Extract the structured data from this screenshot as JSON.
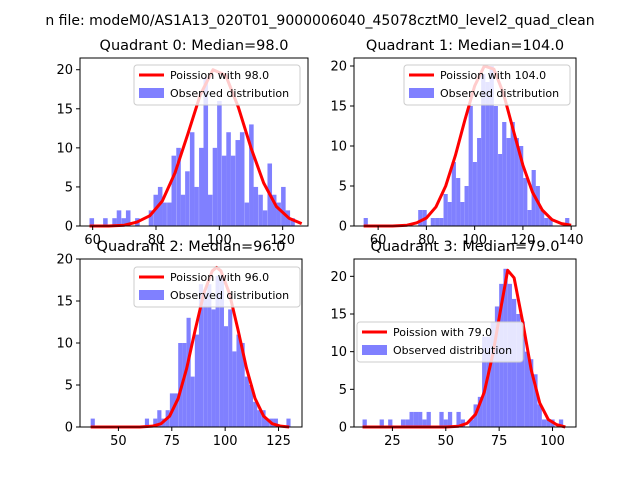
{
  "suptitle": "n file: modeM0/AS1A13_020T01_9000006040_45078cztM0_level2_quad_clean",
  "colors": {
    "hist": "#8080ff",
    "curve": "#ff0000"
  },
  "chart_data": [
    {
      "type": "bar",
      "title": "Quadrant 0: Median=98.0",
      "xlim": [
        56,
        128
      ],
      "ylim": [
        0,
        21.5
      ],
      "xticks": [
        60,
        80,
        100,
        120
      ],
      "yticks": [
        0,
        5,
        10,
        15,
        20
      ],
      "legend": {
        "placement": "top-right",
        "entries": [
          "Poission with 98.0",
          "Observed distribution"
        ]
      },
      "series": [
        {
          "name": "Observed distribution",
          "kind": "histogram",
          "bin_width": 1.44,
          "bin_start": [
            59,
            60.4,
            61.9,
            63.3,
            64.8,
            66.2,
            67.6,
            69.1,
            70.5,
            72,
            73.4,
            74.8,
            76.3,
            77.7,
            79.2,
            80.6,
            82,
            83.5,
            84.9,
            86.4,
            87.8,
            89.2,
            90.7,
            92.1,
            93.6,
            95,
            96.4,
            97.9,
            99.3,
            100.8,
            102.2,
            103.6,
            105.1,
            106.5,
            108,
            109.4,
            110.8,
            112.3,
            113.7,
            115.2,
            116.6,
            118,
            119.5,
            120.9,
            122.4,
            123.8
          ],
          "counts": [
            1,
            0,
            0,
            1,
            0,
            1,
            2,
            1,
            2,
            0,
            1,
            0,
            0,
            2,
            4,
            5,
            3,
            3,
            9,
            10,
            4,
            7,
            12,
            5,
            10,
            19,
            4,
            10,
            16,
            9,
            12,
            9,
            11,
            12,
            3,
            13,
            5,
            4,
            2,
            8,
            4,
            3,
            5,
            2,
            1,
            0
          ]
        },
        {
          "name": "Poission with 98.0",
          "kind": "line",
          "x": [
            59,
            65,
            70,
            74,
            78,
            82,
            86,
            90,
            94,
            98,
            102,
            106,
            110,
            114,
            118,
            122,
            126
          ],
          "y": [
            0.0,
            0.0,
            0.1,
            0.5,
            1.3,
            3.2,
            6.8,
            11.7,
            16.8,
            20.0,
            19.3,
            15.2,
            10.0,
            5.5,
            2.5,
            1.0,
            0.3
          ]
        }
      ]
    },
    {
      "type": "bar",
      "title": "Quadrant 1: Median=104.0",
      "xlim": [
        50,
        142
      ],
      "ylim": [
        0,
        21.0
      ],
      "xticks": [
        60,
        80,
        100,
        120,
        140
      ],
      "yticks": [
        0,
        5,
        10,
        15,
        20
      ],
      "legend": {
        "placement": "top-right",
        "entries": [
          "Poission with 104.0",
          "Observed distribution"
        ]
      },
      "series": [
        {
          "name": "Observed distribution",
          "kind": "histogram",
          "bin_width": 1.74,
          "bin_start": [
            54,
            55.7,
            57.5,
            59.2,
            61,
            62.7,
            64.4,
            66.2,
            67.9,
            69.7,
            71.4,
            73.1,
            74.9,
            76.6,
            78.4,
            80.1,
            81.8,
            83.6,
            85.3,
            87.1,
            88.8,
            90.5,
            92.3,
            94,
            95.8,
            97.5,
            99.2,
            101,
            102.7,
            104.5,
            106.2,
            107.9,
            109.7,
            111.4,
            113.2,
            114.9,
            116.6,
            118.4,
            120.1,
            121.9,
            123.6,
            125.3,
            127.1,
            128.8,
            130.6,
            132.3,
            134,
            135.8,
            137.5
          ],
          "counts": [
            1,
            0,
            0,
            0,
            0,
            0,
            0,
            0,
            0,
            0,
            0,
            0,
            0,
            2,
            2,
            0,
            1,
            1,
            1,
            4,
            3,
            8,
            6,
            3,
            5,
            15,
            8,
            11,
            19,
            18,
            20,
            15,
            9,
            13,
            11,
            13,
            11,
            10,
            6,
            2,
            7,
            5,
            2,
            1,
            1,
            0,
            0,
            0,
            1
          ]
        },
        {
          "name": "Poission with 104.0",
          "kind": "line",
          "x": [
            54,
            66,
            72,
            76,
            80,
            84,
            88,
            92,
            96,
            100,
            104,
            108,
            112,
            116,
            120,
            124,
            128,
            132,
            136,
            140
          ],
          "y": [
            0.0,
            0.0,
            0.1,
            0.4,
            1.0,
            2.4,
            5.0,
            8.8,
            13.3,
            17.5,
            20.0,
            19.6,
            16.5,
            12.0,
            7.6,
            4.2,
            2.0,
            0.8,
            0.3,
            0.1
          ]
        }
      ]
    },
    {
      "type": "bar",
      "title": "Quadrant 2: Median=96.0",
      "xlim": [
        32,
        136
      ],
      "ylim": [
        0,
        20.0
      ],
      "xticks": [
        50,
        75,
        100,
        125
      ],
      "yticks": [
        0,
        5,
        10,
        15,
        20
      ],
      "legend": {
        "placement": "top-right",
        "entries": [
          "Poission with 96.0",
          "Observed distribution"
        ]
      },
      "series": [
        {
          "name": "Observed distribution",
          "kind": "histogram",
          "bin_width": 1.95,
          "bin_start": [
            37,
            39,
            40.9,
            42.9,
            44.8,
            46.8,
            48.7,
            50.7,
            52.6,
            54.6,
            56.5,
            58.5,
            60.4,
            62.4,
            64.3,
            66.3,
            68.2,
            70.2,
            72.1,
            74.1,
            76,
            78,
            79.9,
            81.9,
            83.8,
            85.8,
            87.7,
            89.7,
            91.6,
            93.6,
            95.5,
            97.5,
            99.4,
            101.4,
            103.3,
            105.3,
            107.2,
            109.2,
            111.1,
            113.1,
            115,
            117,
            118.9,
            120.9,
            122.8,
            124.8,
            126.7,
            128.7
          ],
          "counts": [
            1,
            0,
            0,
            0,
            0,
            0,
            0,
            0,
            0,
            0,
            0,
            0,
            0,
            1,
            0,
            1,
            2,
            1,
            2,
            4,
            4,
            10,
            10,
            13,
            6,
            11,
            17,
            16,
            17,
            14,
            18,
            18,
            12,
            14,
            9,
            11,
            10,
            6,
            5,
            3,
            2,
            2,
            1,
            1,
            1,
            0,
            0,
            1
          ]
        },
        {
          "name": "Poission with 96.0",
          "kind": "line",
          "x": [
            37,
            60,
            66,
            70,
            74,
            78,
            82,
            86,
            90,
            94,
            96,
            98,
            102,
            106,
            110,
            114,
            118,
            122,
            126,
            130
          ],
          "y": [
            0.0,
            0.0,
            0.1,
            0.4,
            1.3,
            3.4,
            7.0,
            11.6,
            15.9,
            18.6,
            19.0,
            18.6,
            15.9,
            11.6,
            7.0,
            3.4,
            1.3,
            0.4,
            0.1,
            0.0
          ]
        }
      ]
    },
    {
      "type": "bar",
      "title": "Quadrant 3: Median=79.0",
      "xlim": [
        7,
        111
      ],
      "ylim": [
        0,
        22.3
      ],
      "xticks": [
        25,
        50,
        75,
        100
      ],
      "yticks": [
        0,
        5,
        10,
        15,
        20
      ],
      "legend": {
        "placement": "center-left",
        "entries": [
          "Poission with 79.0",
          "Observed distribution"
        ]
      },
      "series": [
        {
          "name": "Observed distribution",
          "kind": "histogram",
          "bin_width": 2.0,
          "bin_start": [
            11,
            13,
            15,
            17,
            19,
            21,
            23,
            25,
            27,
            29,
            31,
            33,
            35,
            37,
            39,
            41,
            43,
            45,
            47,
            49,
            51,
            53,
            55,
            57,
            59,
            61,
            63,
            65,
            67,
            69,
            71,
            73,
            75,
            77,
            79,
            81,
            83,
            85,
            87,
            89,
            91,
            93,
            95,
            97,
            99,
            101,
            103
          ],
          "counts": [
            1,
            0,
            0,
            0,
            1,
            0,
            1,
            0,
            0,
            1,
            1,
            2,
            2,
            2,
            1,
            2,
            0,
            0,
            2,
            1,
            2,
            0,
            2,
            1,
            0,
            1,
            3,
            4,
            12,
            12,
            14,
            16,
            19,
            21,
            19,
            17,
            15,
            14,
            10,
            9,
            7,
            3,
            1,
            1,
            1,
            0,
            1
          ]
        },
        {
          "name": "Poission with 79.0",
          "kind": "line",
          "x": [
            11,
            40,
            50,
            56,
            60,
            64,
            68,
            72,
            76,
            79,
            82,
            86,
            90,
            94,
            98,
            102,
            106
          ],
          "y": [
            0.0,
            0.0,
            0.0,
            0.1,
            0.5,
            1.7,
            4.6,
            9.6,
            16.1,
            20.8,
            19.8,
            14.0,
            7.6,
            3.2,
            1.0,
            0.3,
            0.0
          ]
        }
      ]
    }
  ]
}
